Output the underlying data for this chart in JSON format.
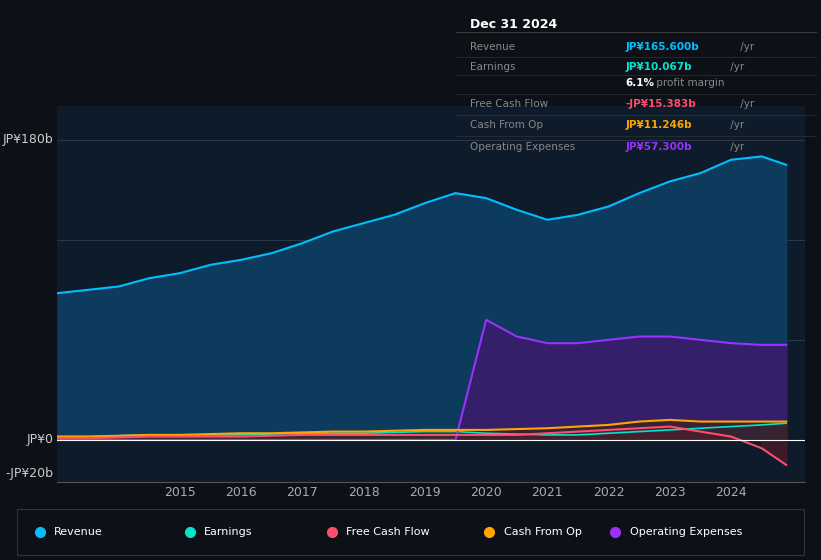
{
  "background_color": "#0d1117",
  "plot_bg_color": "#0d1b2a",
  "ylabel_top": "JP¥180b",
  "ylabel_zero": "JP¥0",
  "ylabel_neg": "-JP¥20b",
  "years": [
    2013.0,
    2013.5,
    2014.0,
    2014.5,
    2015.0,
    2015.5,
    2016.0,
    2016.5,
    2017.0,
    2017.5,
    2018.0,
    2018.5,
    2019.0,
    2019.5,
    2020.0,
    2020.5,
    2021.0,
    2021.5,
    2022.0,
    2022.5,
    2023.0,
    2023.5,
    2024.0,
    2024.5,
    2024.9
  ],
  "revenue": [
    88,
    90,
    92,
    97,
    100,
    105,
    108,
    112,
    118,
    125,
    130,
    135,
    142,
    148,
    145,
    138,
    132,
    135,
    140,
    148,
    155,
    160,
    168,
    170,
    165
  ],
  "earnings": [
    2,
    2,
    2.5,
    3,
    3,
    3,
    3,
    3.5,
    4,
    4,
    4,
    4.5,
    5,
    5,
    4,
    3.5,
    3,
    3,
    4,
    5,
    6,
    7,
    8,
    9,
    10
  ],
  "free_cash_flow": [
    1,
    1,
    1.5,
    2,
    2,
    2,
    2,
    2.5,
    3,
    3,
    3,
    3,
    3,
    3,
    3,
    3,
    4,
    5,
    6,
    7,
    8,
    5,
    2,
    -5,
    -15
  ],
  "cash_from_op": [
    2,
    2,
    2.5,
    3,
    3,
    3.5,
    4,
    4,
    4.5,
    5,
    5,
    5.5,
    6,
    6,
    6,
    6.5,
    7,
    8,
    9,
    11,
    12,
    11,
    11,
    11,
    11
  ],
  "operating_expenses": [
    0,
    0,
    0,
    0,
    0,
    0,
    0,
    0,
    0,
    0,
    0,
    0,
    0,
    0,
    72,
    62,
    58,
    58,
    60,
    62,
    62,
    60,
    58,
    57,
    57
  ],
  "revenue_color": "#00bfff",
  "earnings_color": "#00e5cc",
  "fcf_color": "#ff4d6d",
  "cashop_color": "#ffa500",
  "opex_color": "#9b30ff",
  "revenue_fill": "#0d3b5e",
  "earnings_fill": "#0d4a3a",
  "opex_fill": "#3d1a6e",
  "ylim": [
    -25,
    200
  ],
  "xlim": [
    2013.0,
    2025.2
  ],
  "xticks": [
    2015,
    2016,
    2017,
    2018,
    2019,
    2020,
    2021,
    2022,
    2023,
    2024
  ],
  "info_box": {
    "date": "Dec 31 2024",
    "revenue_label": "Revenue",
    "revenue_val": "JP¥165.600b",
    "earnings_label": "Earnings",
    "earnings_val": "JP¥10.067b",
    "margin_val": "6.1% profit margin",
    "fcf_label": "Free Cash Flow",
    "fcf_val": "-JP¥15.383b",
    "cashop_label": "Cash From Op",
    "cashop_val": "JP¥11.246b",
    "opex_label": "Operating Expenses",
    "opex_val": "JP¥57.300b"
  },
  "legend_items": [
    {
      "label": "Revenue",
      "color": "#00bfff"
    },
    {
      "label": "Earnings",
      "color": "#00e5cc"
    },
    {
      "label": "Free Cash Flow",
      "color": "#ff4d6d"
    },
    {
      "label": "Cash From Op",
      "color": "#ffa500"
    },
    {
      "label": "Operating Expenses",
      "color": "#9b30ff"
    }
  ]
}
